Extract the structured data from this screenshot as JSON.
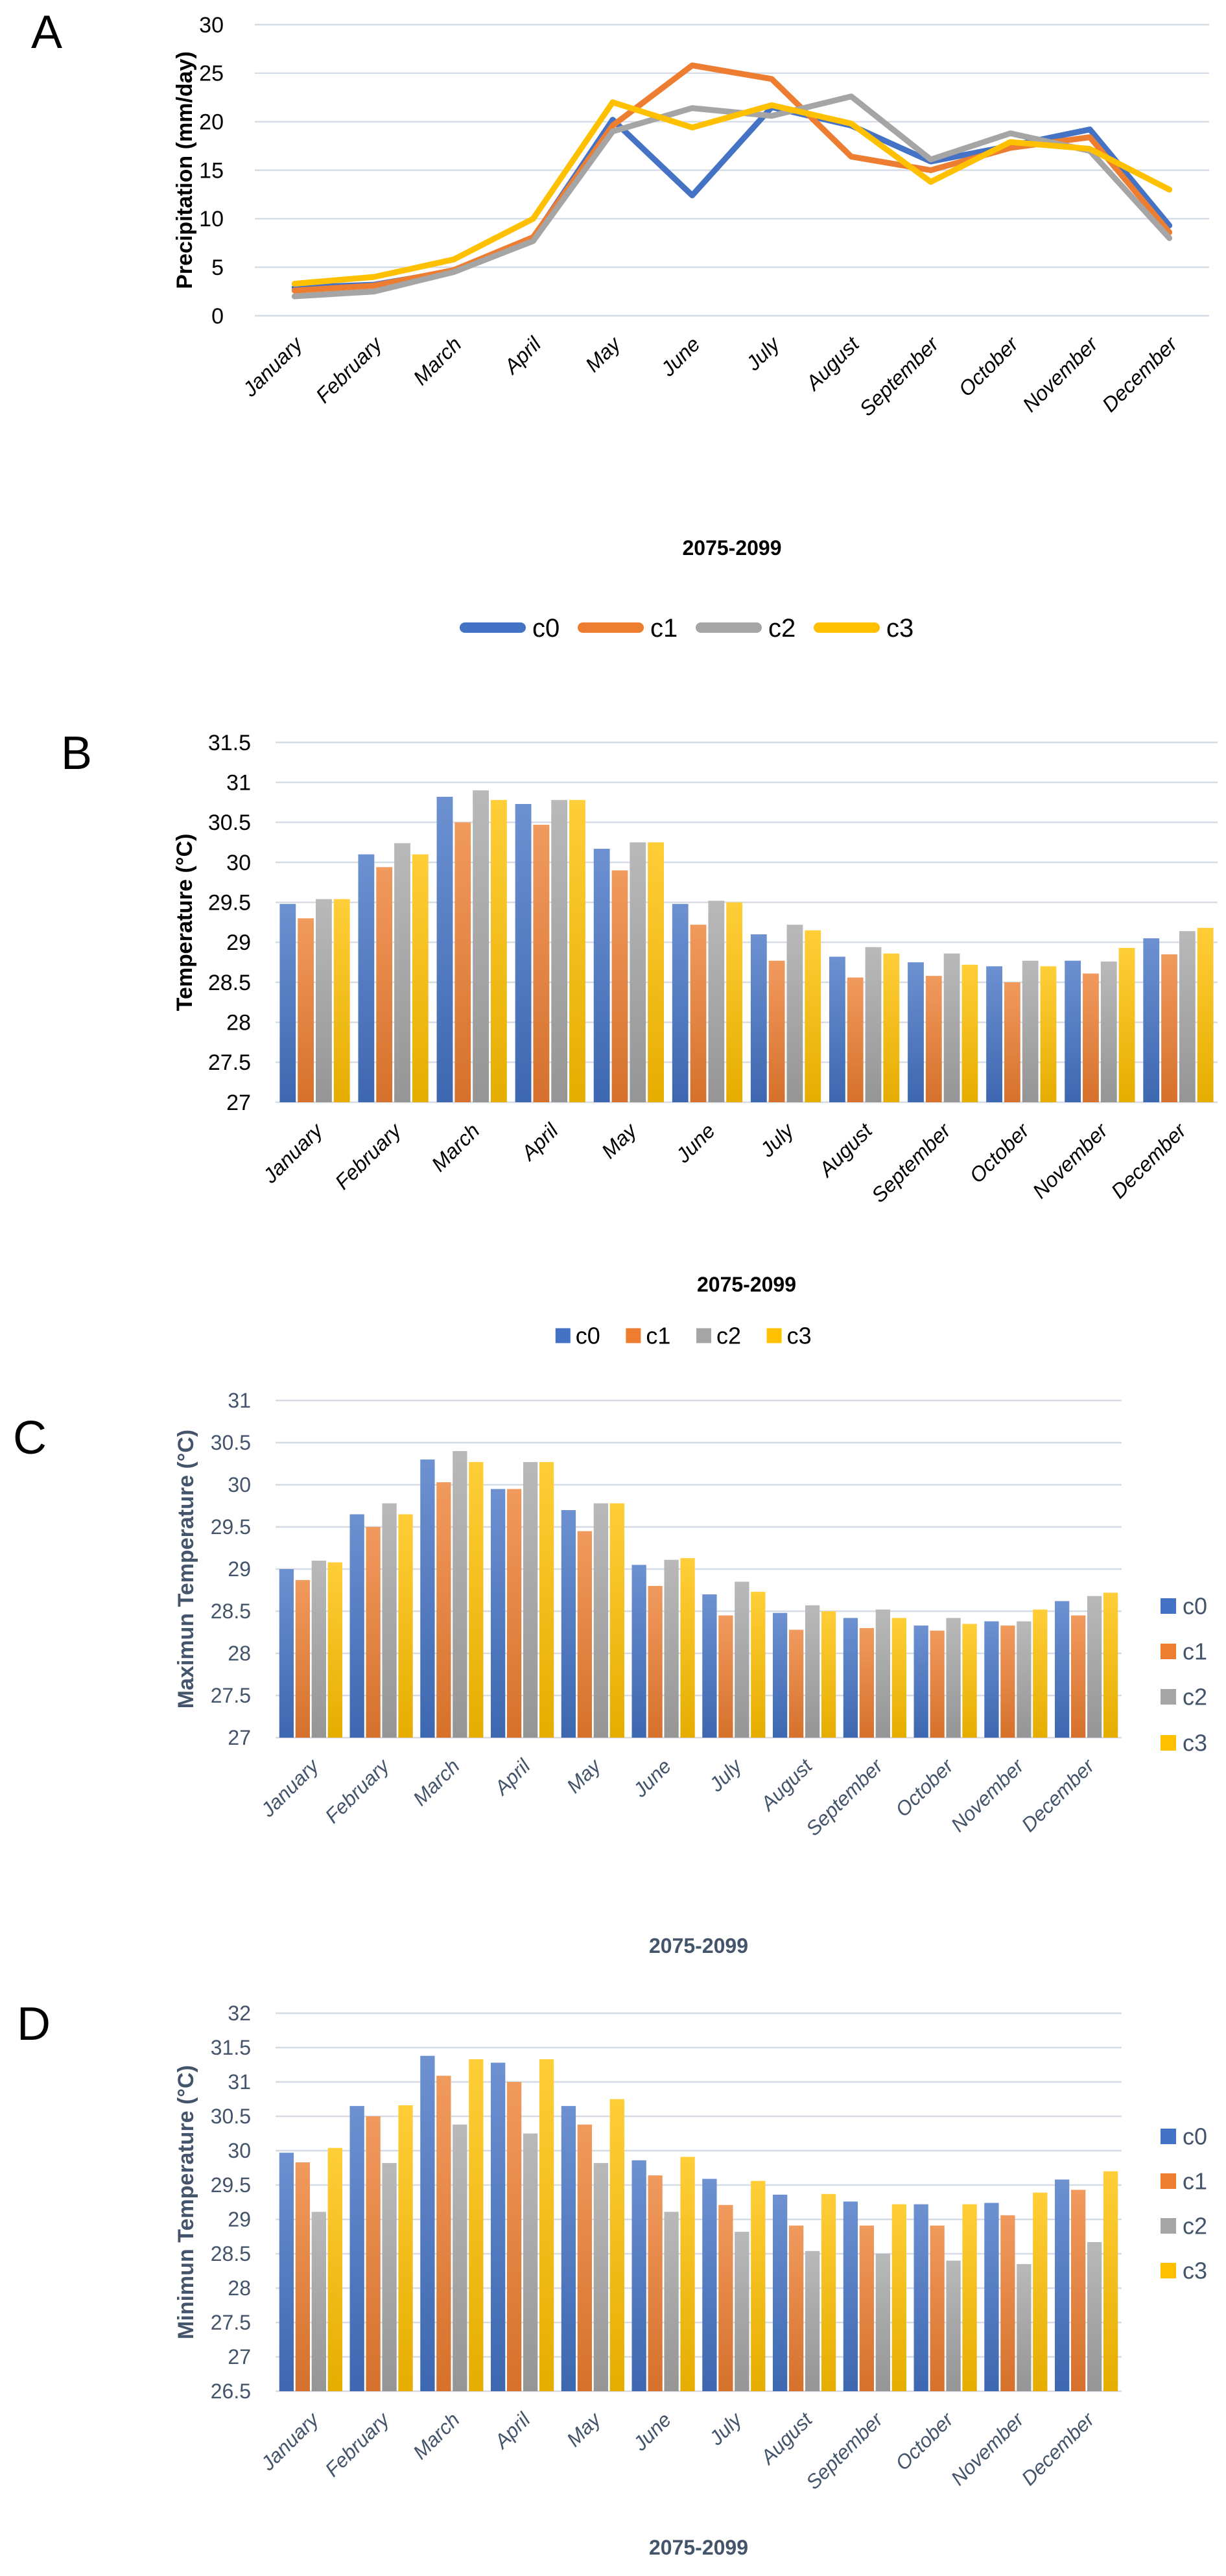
{
  "months": [
    "January",
    "February",
    "March",
    "April",
    "May",
    "June",
    "July",
    "August",
    "September",
    "October",
    "November",
    "December"
  ],
  "colors": {
    "c0": "#4472C4",
    "c1": "#ED7D31",
    "c2": "#A5A5A5",
    "c3": "#FFC000",
    "grid": "#D6DCE5",
    "black_text": "#000000",
    "slate_text": "#44546A",
    "background": "#FFFFFF"
  },
  "chart_data": [
    {
      "panel": "A",
      "type": "line",
      "title": "",
      "ylabel": "Precipitation (mm/day)",
      "xlabel": "2075-2099",
      "ylim": [
        0,
        30
      ],
      "ytick_step": 5,
      "grid": true,
      "text_color": "#000000",
      "legend_position": "bottom",
      "legend_marker": "line",
      "legend_entries": [
        "c0",
        "c1",
        "c2",
        "c3"
      ],
      "series": [
        {
          "name": "c0",
          "values": [
            2.9,
            3.2,
            4.6,
            8.0,
            20.2,
            12.4,
            21.5,
            19.6,
            15.9,
            17.5,
            19.2,
            9.3
          ]
        },
        {
          "name": "c1",
          "values": [
            2.6,
            3.1,
            4.7,
            8.1,
            19.6,
            25.8,
            24.4,
            16.4,
            15.0,
            17.3,
            18.4,
            8.6
          ]
        },
        {
          "name": "c2",
          "values": [
            2.0,
            2.5,
            4.5,
            7.7,
            19.0,
            21.4,
            20.6,
            22.6,
            16.1,
            18.8,
            17.0,
            8.0
          ]
        },
        {
          "name": "c3",
          "values": [
            3.3,
            4.0,
            5.8,
            10.0,
            22.0,
            19.4,
            21.7,
            19.8,
            13.8,
            17.9,
            17.2,
            13.0
          ]
        }
      ]
    },
    {
      "panel": "B",
      "type": "bar",
      "title": "",
      "ylabel": "Temperature (°C)",
      "xlabel": "2075-2099",
      "ylim": [
        27,
        31.5
      ],
      "ytick_step": 0.5,
      "grid": true,
      "text_color": "#000000",
      "legend_position": "bottom",
      "legend_marker": "square",
      "legend_entries": [
        "c0",
        "c1",
        "c2",
        "c3"
      ],
      "series": [
        {
          "name": "c0",
          "values": [
            29.48,
            30.1,
            30.82,
            30.73,
            30.17,
            29.48,
            29.1,
            28.82,
            28.75,
            28.7,
            28.77,
            29.05
          ]
        },
        {
          "name": "c1",
          "values": [
            29.3,
            29.94,
            30.5,
            30.47,
            29.9,
            29.22,
            28.77,
            28.56,
            28.58,
            28.5,
            28.61,
            28.85
          ]
        },
        {
          "name": "c2",
          "values": [
            29.54,
            30.24,
            30.9,
            30.78,
            30.25,
            29.52,
            29.22,
            28.94,
            28.86,
            28.77,
            28.76,
            29.14
          ]
        },
        {
          "name": "c3",
          "values": [
            29.54,
            30.1,
            30.78,
            30.78,
            30.25,
            29.5,
            29.15,
            28.86,
            28.72,
            28.7,
            28.93,
            29.18
          ]
        }
      ]
    },
    {
      "panel": "C",
      "type": "bar",
      "title": "",
      "ylabel": "Maximun Temperature (°C)",
      "xlabel": "2075-2099",
      "ylim": [
        27,
        31
      ],
      "ytick_step": 0.5,
      "grid": true,
      "text_color": "#44546A",
      "legend_position": "right",
      "legend_marker": "square",
      "legend_entries": [
        "c0",
        "c1",
        "c2",
        "c3"
      ],
      "series": [
        {
          "name": "c0",
          "values": [
            29.0,
            29.65,
            30.3,
            29.95,
            29.7,
            29.05,
            28.7,
            28.48,
            28.42,
            28.33,
            28.38,
            28.62
          ]
        },
        {
          "name": "c1",
          "values": [
            28.87,
            29.5,
            30.03,
            29.95,
            29.45,
            28.8,
            28.45,
            28.28,
            28.3,
            28.27,
            28.33,
            28.45
          ]
        },
        {
          "name": "c2",
          "values": [
            29.1,
            29.78,
            30.4,
            30.27,
            29.78,
            29.11,
            28.85,
            28.57,
            28.52,
            28.42,
            28.38,
            28.68
          ]
        },
        {
          "name": "c3",
          "values": [
            29.08,
            29.65,
            30.27,
            30.27,
            29.78,
            29.13,
            28.73,
            28.5,
            28.42,
            28.35,
            28.52,
            28.72
          ]
        }
      ]
    },
    {
      "panel": "D",
      "type": "bar",
      "title": "",
      "ylabel": "Minimun Temperature (°C)",
      "xlabel": "2075-2099",
      "ylim": [
        26.5,
        32
      ],
      "ytick_step": 0.5,
      "grid": true,
      "text_color": "#44546A",
      "legend_position": "right",
      "legend_marker": "square",
      "legend_entries": [
        "c0",
        "c1",
        "c2",
        "c3"
      ],
      "series": [
        {
          "name": "c0",
          "values": [
            29.97,
            30.65,
            31.38,
            31.28,
            30.65,
            29.86,
            29.59,
            29.36,
            29.26,
            29.22,
            29.24,
            29.58
          ]
        },
        {
          "name": "c1",
          "values": [
            29.83,
            30.5,
            31.09,
            31.0,
            30.38,
            29.64,
            29.21,
            28.91,
            28.91,
            28.91,
            29.06,
            29.43
          ]
        },
        {
          "name": "c2",
          "values": [
            29.11,
            29.82,
            30.38,
            30.25,
            29.82,
            29.11,
            28.82,
            28.54,
            28.5,
            28.4,
            28.35,
            28.67
          ]
        },
        {
          "name": "c3",
          "values": [
            30.04,
            30.66,
            31.33,
            31.33,
            30.75,
            29.91,
            29.56,
            29.37,
            29.22,
            29.22,
            29.39,
            29.7
          ]
        }
      ]
    }
  ]
}
